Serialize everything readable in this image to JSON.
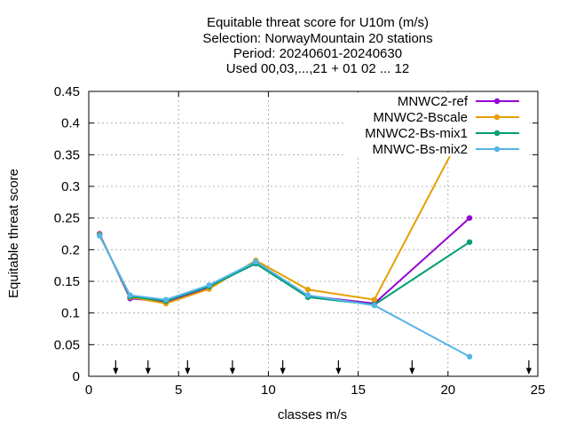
{
  "chart_data": {
    "type": "line",
    "title_lines": [
      "Equitable threat score  for U10m (m/s)",
      "Selection: NorwayMountain     20 stations",
      "Period: 20240601-20240630",
      "Used 00,03,...,21 + 01 02 ... 12"
    ],
    "xlabel": "classes m/s",
    "ylabel": "Equitable threat score",
    "xlim": [
      0,
      25
    ],
    "ylim": [
      0,
      0.45
    ],
    "xticks": [
      0,
      5,
      10,
      15,
      20,
      25
    ],
    "xtick_labels": [
      "0",
      "5",
      "10",
      "15",
      "20",
      "25"
    ],
    "yticks": [
      0,
      0.05,
      0.1,
      0.15,
      0.2,
      0.25,
      0.3,
      0.35,
      0.4,
      0.45
    ],
    "ytick_labels": [
      "0",
      "0.05",
      "0.1",
      "0.15",
      "0.2",
      "0.25",
      "0.3",
      "0.35",
      "0.4",
      "0.45"
    ],
    "grid": true,
    "legend_position": "top-right",
    "x": [
      0.6,
      2.3,
      4.3,
      6.7,
      9.3,
      12.2,
      15.9,
      21.2
    ],
    "series": [
      {
        "name": "MNWC2-ref",
        "color": "#9400d3",
        "values": [
          0.225,
          0.123,
          0.118,
          0.14,
          0.18,
          0.127,
          0.115,
          0.25
        ]
      },
      {
        "name": "MNWC2-Bscale",
        "color": "#e69f00",
        "values": [
          0.224,
          0.125,
          0.115,
          0.138,
          0.183,
          0.137,
          0.121,
          0.407
        ]
      },
      {
        "name": "MNWC2-Bs-mix1",
        "color": "#009e73",
        "values": [
          0.223,
          0.126,
          0.119,
          0.142,
          0.178,
          0.125,
          0.113,
          0.212
        ]
      },
      {
        "name": "MNWC-Bs-mix2",
        "color": "#56b4e9",
        "values": [
          0.222,
          0.128,
          0.121,
          0.144,
          0.181,
          0.128,
          0.112,
          0.031
        ]
      }
    ],
    "arrow_markers_x": [
      1.5,
      3.3,
      5.5,
      8.0,
      10.8,
      13.9,
      18.0,
      24.5
    ]
  }
}
